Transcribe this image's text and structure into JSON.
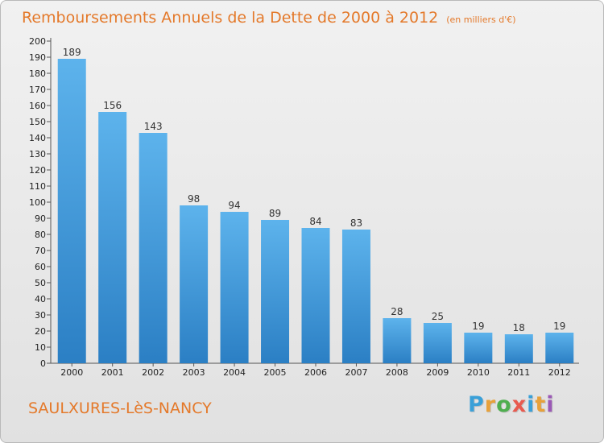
{
  "header": {
    "title": "Remboursements Annuels de la Dette de 2000 à 2012",
    "subtitle": "(en milliers d'€)"
  },
  "footer": {
    "commune": "SAULXURES-LèS-NANCY",
    "logo_text": "Proxiti",
    "logo_colors": [
      "#3aa0d8",
      "#e8a13a",
      "#4fae4f",
      "#e85a4f",
      "#3aa0d8",
      "#e8a13a",
      "#9b59b6"
    ]
  },
  "colors": {
    "title": "#e4792a",
    "bar_top": "#5db3ec",
    "bar_bottom": "#2b7fc4",
    "axis": "#555555"
  },
  "chart_data": {
    "type": "bar",
    "title": "Remboursements Annuels de la Dette de 2000 à 2012",
    "subtitle": "(en milliers d'€)",
    "xlabel": "",
    "ylabel": "",
    "categories": [
      "2000",
      "2001",
      "2002",
      "2003",
      "2004",
      "2005",
      "2006",
      "2007",
      "2008",
      "2009",
      "2010",
      "2011",
      "2012"
    ],
    "values": [
      189,
      156,
      143,
      98,
      94,
      89,
      84,
      83,
      28,
      25,
      19,
      18,
      19
    ],
    "ylim": [
      0,
      200
    ],
    "ytick_step": 10,
    "grid": false,
    "legend": "none"
  }
}
